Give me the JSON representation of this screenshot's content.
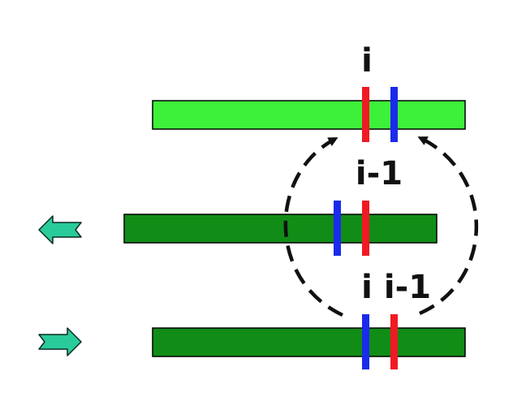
{
  "labels": {
    "top": "i",
    "middle": "i-1",
    "bottom_left": "i",
    "bottom_right": "i-1"
  },
  "colors": {
    "bar_top": "#3DF03A",
    "bar_dark": "#118C16",
    "bar_stroke": "#000000",
    "marker_red": "#F01A24",
    "marker_blue": "#1A2BEB",
    "arrow_fill": "#2ACB9A",
    "arrow_stroke": "#0A2B22",
    "dashed": "#111111"
  },
  "icons": {
    "left_arrow": "left-arrow-icon",
    "right_arrow": "right-arrow-icon"
  }
}
